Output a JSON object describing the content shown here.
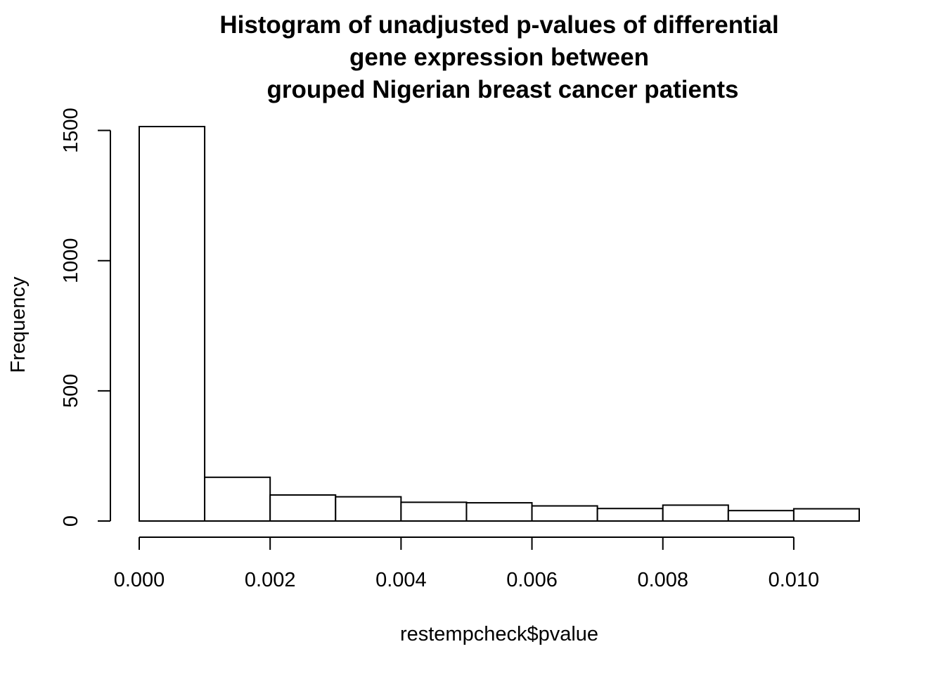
{
  "chart_data": {
    "type": "bar",
    "title_lines": [
      "Histogram of unadjusted p-values of differential",
      "gene expression between",
      "grouped Nigerian breast cancer patients"
    ],
    "xlabel": "restempcheck$pvalue",
    "ylabel": "Frequency",
    "bins": [
      {
        "x0": 0.0,
        "x1": 0.001,
        "count": 1515
      },
      {
        "x0": 0.001,
        "x1": 0.002,
        "count": 168
      },
      {
        "x0": 0.002,
        "x1": 0.003,
        "count": 100
      },
      {
        "x0": 0.003,
        "x1": 0.004,
        "count": 93
      },
      {
        "x0": 0.004,
        "x1": 0.005,
        "count": 72
      },
      {
        "x0": 0.005,
        "x1": 0.006,
        "count": 70
      },
      {
        "x0": 0.006,
        "x1": 0.007,
        "count": 58
      },
      {
        "x0": 0.007,
        "x1": 0.008,
        "count": 48
      },
      {
        "x0": 0.008,
        "x1": 0.009,
        "count": 61
      },
      {
        "x0": 0.009,
        "x1": 0.01,
        "count": 40
      },
      {
        "x0": 0.01,
        "x1": 0.011,
        "count": 47
      }
    ],
    "xlim": [
      0,
      0.011
    ],
    "ylim": [
      0,
      1515
    ],
    "xticks": [
      0,
      0.002,
      0.004,
      0.006,
      0.008,
      0.01
    ],
    "xtick_labels": [
      "0.000",
      "0.002",
      "0.004",
      "0.006",
      "0.008",
      "0.010"
    ],
    "yticks": [
      0,
      500,
      1000,
      1500
    ],
    "ytick_labels": [
      "0",
      "500",
      "1000",
      "1500"
    ],
    "grid": false,
    "legend": "none",
    "colors": {
      "bar_fill": "#ffffff",
      "bar_stroke": "#000000"
    }
  }
}
